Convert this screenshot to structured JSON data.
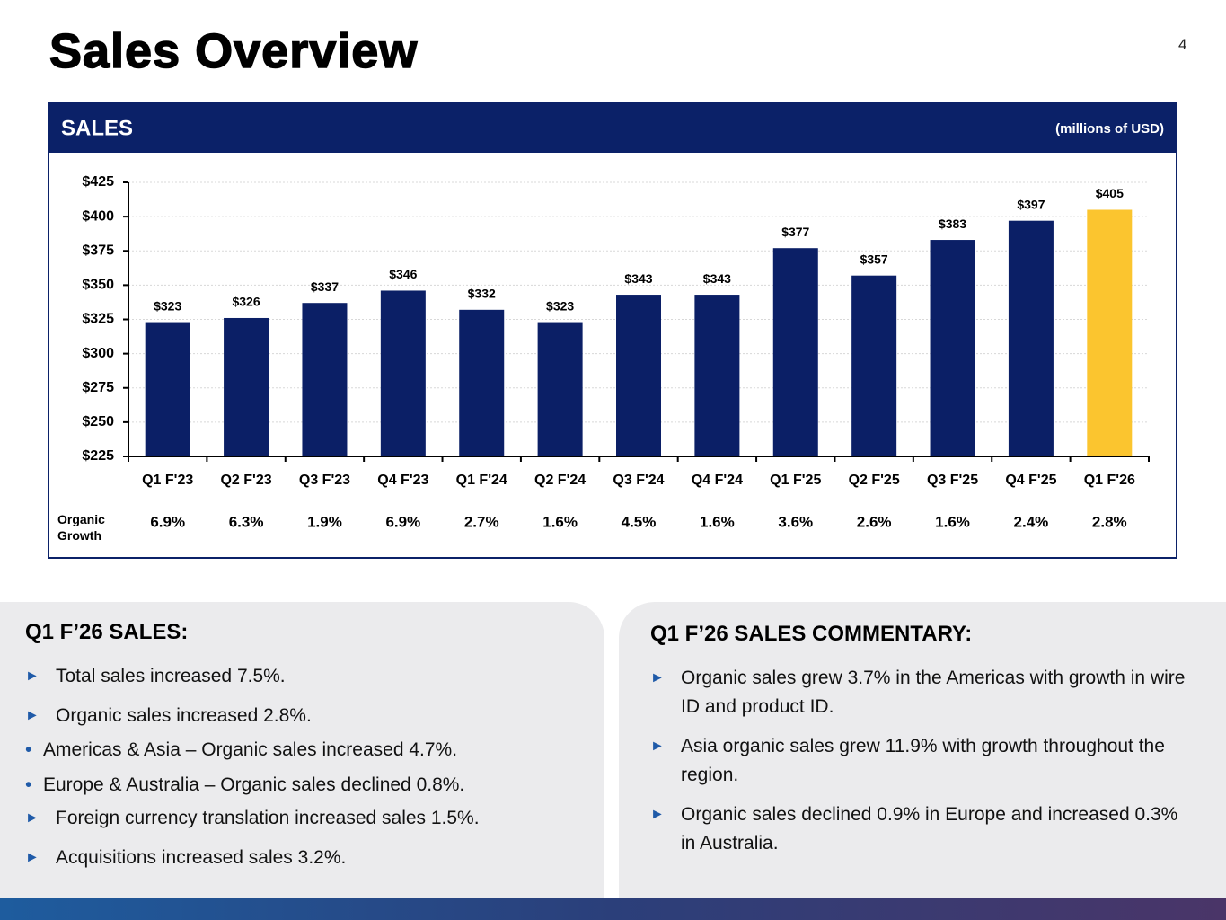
{
  "header": {
    "title": "Sales Overview",
    "page_number": "4"
  },
  "chart_data": {
    "type": "bar",
    "title": "SALES",
    "subtitle": "(millions of USD)",
    "categories": [
      "Q1 F'23",
      "Q2 F'23",
      "Q3 F'23",
      "Q4 F'23",
      "Q1 F'24",
      "Q2 F'24",
      "Q3 F'24",
      "Q4 F'24",
      "Q1 F'25",
      "Q2 F'25",
      "Q3 F'25",
      "Q4 F'25",
      "Q1 F'26"
    ],
    "values": [
      323,
      326,
      337,
      346,
      332,
      323,
      343,
      343,
      377,
      357,
      383,
      397,
      405
    ],
    "value_labels": [
      "$323",
      "$326",
      "$337",
      "$346",
      "$332",
      "$323",
      "$343",
      "$343",
      "$377",
      "$357",
      "$383",
      "$397",
      "$405"
    ],
    "colors": [
      "#0b1f66",
      "#0b1f66",
      "#0b1f66",
      "#0b1f66",
      "#0b1f66",
      "#0b1f66",
      "#0b1f66",
      "#0b1f66",
      "#0b1f66",
      "#0b1f66",
      "#0b1f66",
      "#0b1f66",
      "#fbc52f"
    ],
    "ylim": [
      225,
      425
    ],
    "yticks": [
      {
        "value": 225,
        "label": "$225"
      },
      {
        "value": 250,
        "label": "$250"
      },
      {
        "value": 275,
        "label": "$275"
      },
      {
        "value": 300,
        "label": "$300"
      },
      {
        "value": 325,
        "label": "$325"
      },
      {
        "value": 350,
        "label": "$350"
      },
      {
        "value": 375,
        "label": "$375"
      },
      {
        "value": 400,
        "label": "$400"
      },
      {
        "value": 425,
        "label": "$425"
      }
    ],
    "grid": true,
    "growth_row": {
      "label": "Organic Growth",
      "labels": [
        "6.9%",
        "6.3%",
        "1.9%",
        "6.9%",
        "2.7%",
        "1.6%",
        "4.5%",
        "1.6%",
        "3.6%",
        "2.6%",
        "1.6%",
        "2.4%",
        "2.8%"
      ]
    }
  },
  "sales_panel": {
    "title": "Q1 F’26 SALES:",
    "bullets": [
      {
        "text": "Total sales increased 7.5%."
      },
      {
        "text": "Organic sales increased 2.8%.",
        "subitems": [
          "Americas & Asia – Organic sales increased 4.7%.",
          "Europe & Australia – Organic sales declined 0.8%."
        ]
      },
      {
        "text": "Foreign currency translation increased sales 1.5%."
      },
      {
        "text": "Acquisitions increased sales 3.2%."
      }
    ]
  },
  "commentary_panel": {
    "title": "Q1 F’26 SALES COMMENTARY:",
    "bullets": [
      {
        "text": "Organic sales grew 3.7% in the Americas with growth in wire ID and product ID."
      },
      {
        "text": "Asia organic sales grew 11.9% with growth throughout the region."
      },
      {
        "text": "Organic sales declined 0.9% in Europe and increased 0.3% in Australia."
      }
    ]
  }
}
